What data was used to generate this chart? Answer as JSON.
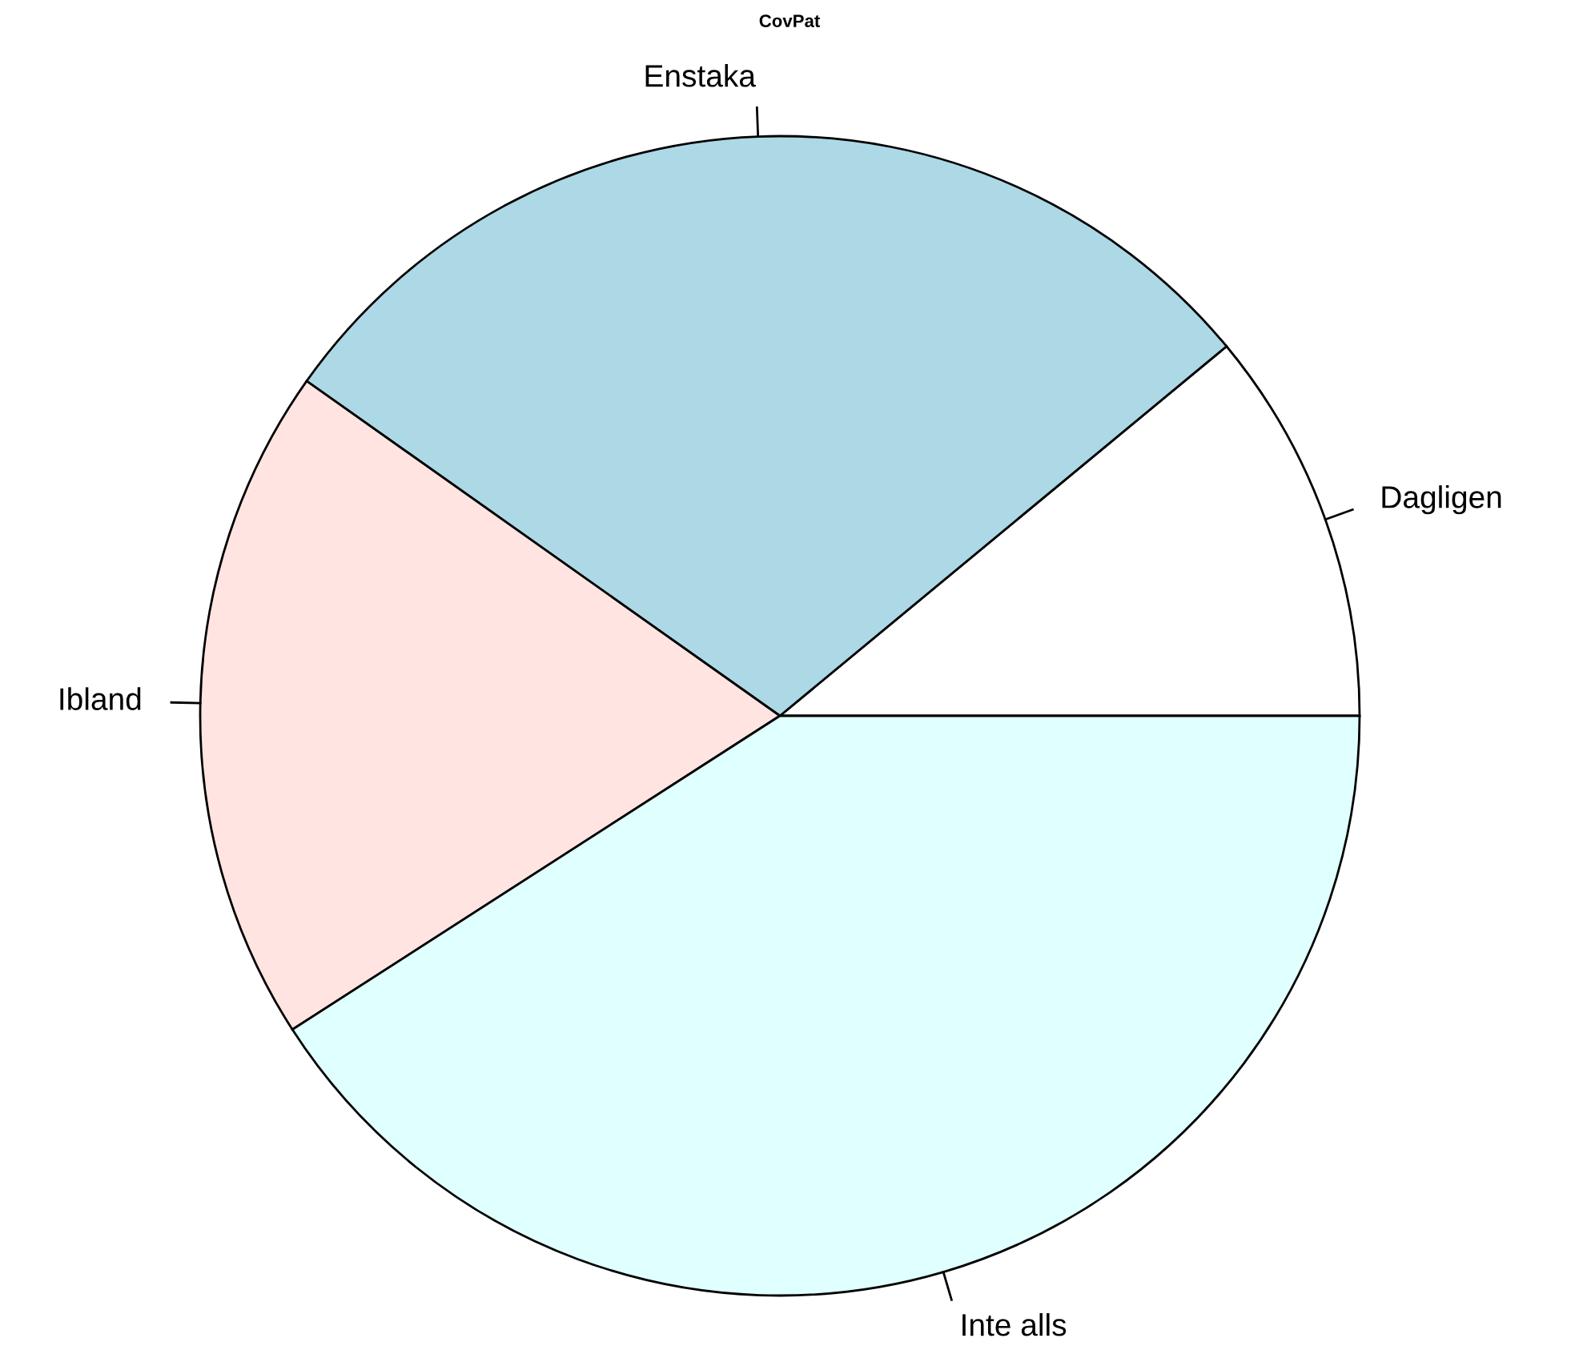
{
  "chart_data": {
    "type": "pie",
    "title": "CovPat",
    "categories": [
      "Dagligen",
      "Enstaka",
      "Ibland",
      "Inte alls"
    ],
    "values": [
      11.0,
      29.2,
      18.9,
      40.9
    ],
    "colors": [
      "#ffffff",
      "#add8e6",
      "#ffe4e1",
      "#e0ffff"
    ]
  }
}
